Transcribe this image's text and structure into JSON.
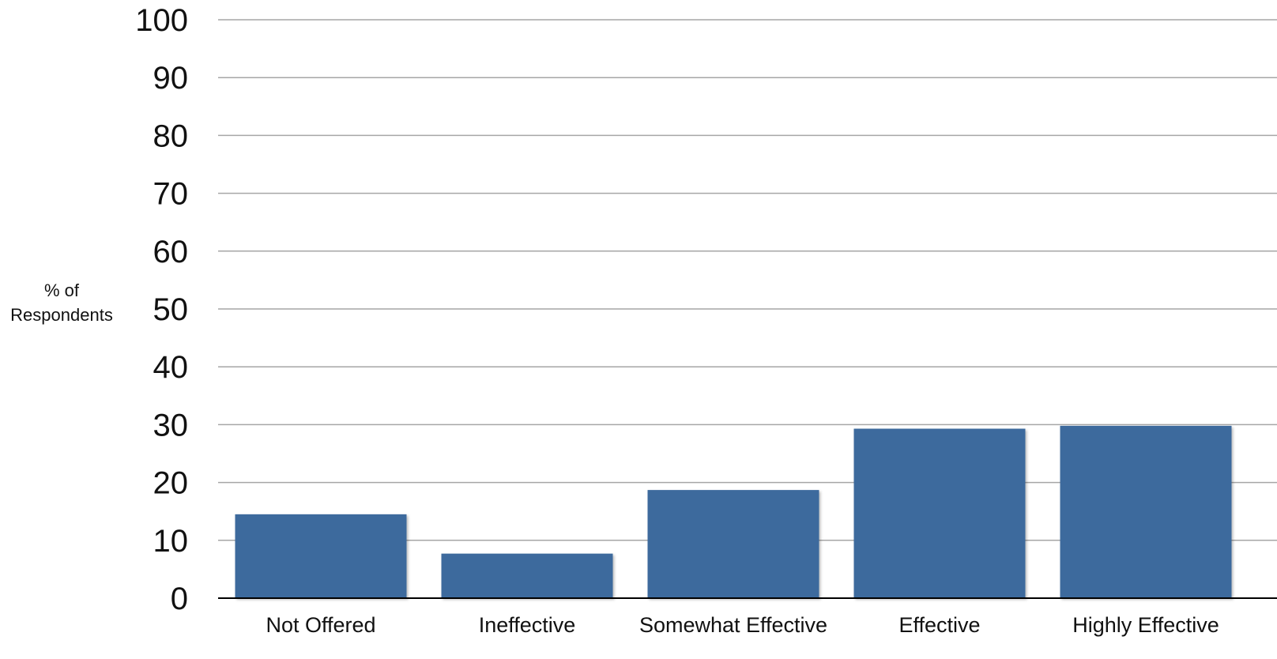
{
  "chart_data": {
    "type": "bar",
    "categories": [
      "Not Offered",
      "Ineffective",
      "Somewhat Effective",
      "Effective",
      "Highly Effective"
    ],
    "values": [
      14.5,
      7.7,
      18.7,
      29.3,
      29.8
    ],
    "title": "",
    "xlabel": "",
    "ylabel": [
      "% of",
      "Respondents"
    ],
    "ylim": [
      0,
      100
    ],
    "yticks": [
      "0",
      "10",
      "20",
      "30",
      "40",
      "50",
      "60",
      "70",
      "80",
      "90",
      "100"
    ],
    "grid": true,
    "legend": "none"
  },
  "colors": {
    "bar": "#3d6b9d",
    "gridline": "#a6a6a6",
    "axis": "#000000",
    "text": "#111111"
  }
}
